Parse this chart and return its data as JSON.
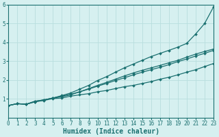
{
  "title": "",
  "xlabel": "Humidex (Indice chaleur)",
  "ylabel": "",
  "bg_color": "#d6f0f0",
  "line_color": "#1a7070",
  "grid_color": "#b8dede",
  "x_min": 0,
  "x_max": 23,
  "y_min": 0,
  "y_max": 6,
  "series": [
    [
      0.65,
      0.75,
      0.72,
      0.85,
      0.92,
      1.02,
      1.05,
      1.15,
      1.22,
      1.28,
      1.38,
      1.45,
      1.55,
      1.65,
      1.72,
      1.82,
      1.92,
      2.05,
      2.15,
      2.28,
      2.42,
      2.55,
      2.72,
      2.88
    ],
    [
      0.65,
      0.75,
      0.72,
      0.88,
      0.95,
      1.05,
      1.15,
      1.25,
      1.38,
      1.52,
      1.68,
      1.82,
      1.98,
      2.12,
      2.28,
      2.42,
      2.55,
      2.68,
      2.82,
      2.98,
      3.12,
      3.28,
      3.42,
      3.58
    ],
    [
      0.65,
      0.75,
      0.72,
      0.88,
      0.95,
      1.05,
      1.18,
      1.32,
      1.52,
      1.72,
      1.98,
      2.18,
      2.42,
      2.65,
      2.85,
      3.05,
      3.25,
      3.42,
      3.58,
      3.75,
      3.95,
      4.45,
      5.0,
      5.88
    ],
    [
      0.65,
      0.75,
      0.72,
      0.85,
      0.95,
      1.05,
      1.12,
      1.22,
      1.38,
      1.55,
      1.72,
      1.88,
      2.05,
      2.22,
      2.38,
      2.52,
      2.65,
      2.78,
      2.92,
      3.05,
      3.22,
      3.38,
      3.52,
      3.65
    ]
  ],
  "marker": "D",
  "marker_size": 2.0,
  "linewidth": 0.9,
  "x_ticks": [
    0,
    1,
    2,
    3,
    4,
    5,
    6,
    7,
    8,
    9,
    10,
    11,
    12,
    13,
    14,
    15,
    16,
    17,
    18,
    19,
    20,
    21,
    22,
    23
  ],
  "y_ticks": [
    1,
    2,
    3,
    4,
    5,
    6
  ],
  "tick_fontsize": 5.5,
  "xlabel_fontsize": 7.0,
  "font_family": "monospace"
}
